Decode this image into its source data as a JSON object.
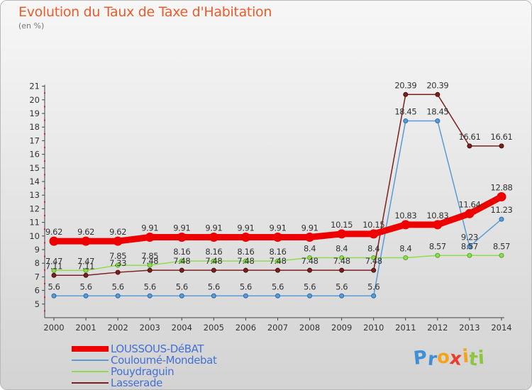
{
  "title": "Evolution du Taux de Taxe d'Habitation",
  "subtitle": "(en %)",
  "logo_text": "Proxiti",
  "chart_data": {
    "type": "line",
    "title": "Evolution du Taux de Taxe d'Habitation",
    "ylabel": "(en %)",
    "xlabel": "",
    "ylim": [
      4,
      21
    ],
    "yticks": [
      5,
      6,
      7,
      8,
      9,
      10,
      11,
      12,
      13,
      14,
      15,
      16,
      17,
      18,
      19,
      20,
      21
    ],
    "grid": false,
    "legend": "bottom-left",
    "categories": [
      "2000",
      "2001",
      "2002",
      "2003",
      "2004",
      "2005",
      "2006",
      "2007",
      "2008",
      "2009",
      "2010",
      "2011",
      "2012",
      "2013",
      "2014"
    ],
    "series": [
      {
        "name": "LOUSSOUS-DéBAT",
        "color": "#ee0000",
        "values": [
          9.62,
          9.62,
          9.62,
          9.91,
          9.91,
          9.91,
          9.91,
          9.91,
          9.91,
          10.15,
          10.15,
          10.83,
          10.83,
          11.64,
          12.88
        ],
        "labels": [
          "9.62",
          "9.62",
          "9.62",
          "9.91",
          "9.91",
          "9.91",
          "9.91",
          "9.91",
          "9.91",
          "10.15",
          "10.15",
          "10.83",
          "10.83",
          "11.64",
          "12.88"
        ]
      },
      {
        "name": "Couloumé-Mondebat",
        "color": "#5b9bd5",
        "values": [
          5.6,
          5.6,
          5.6,
          5.6,
          5.6,
          5.6,
          5.6,
          5.6,
          5.6,
          5.6,
          5.6,
          18.45,
          18.45,
          9.23,
          11.23
        ],
        "labels": [
          "5.6",
          "5.6",
          "5.6",
          "5.6",
          "5.6",
          "5.6",
          "5.6",
          "5.6",
          "5.6",
          "5.6",
          "5.6",
          "18.45",
          "18.45",
          "9.23",
          "11.23"
        ]
      },
      {
        "name": "Pouydraguin",
        "color": "#8fdc50",
        "values": [
          7.47,
          7.47,
          7.85,
          7.85,
          8.16,
          8.16,
          8.16,
          8.16,
          8.4,
          8.4,
          8.4,
          8.4,
          8.57,
          8.57,
          8.57
        ],
        "labels": [
          "7.47",
          "7.47",
          "7.85",
          "7.85",
          "8.16",
          "8.16",
          "8.16",
          "8.16",
          "8.4",
          "8.4",
          "8.4",
          "8.4",
          "8.57",
          "8.57",
          "8.57"
        ]
      },
      {
        "name": "Lasserade",
        "color": "#7a2020",
        "values": [
          7.11,
          7.11,
          7.33,
          7.48,
          7.48,
          7.48,
          7.48,
          7.48,
          7.48,
          7.48,
          7.48,
          20.39,
          20.39,
          16.61,
          16.61
        ],
        "labels": [
          "7.11",
          "7.11",
          "7.33",
          "7.48",
          "7.48",
          "7.48",
          "7.48",
          "7.48",
          "7.48",
          "7.48",
          "7.48",
          "20.39",
          "20.39",
          "16.61",
          "16.61"
        ]
      }
    ]
  }
}
